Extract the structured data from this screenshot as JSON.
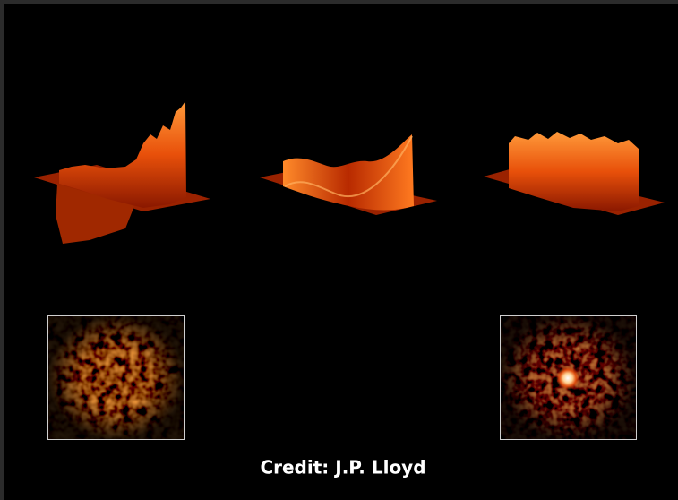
{
  "credit": "Credit: J.P. Lloyd"
}
